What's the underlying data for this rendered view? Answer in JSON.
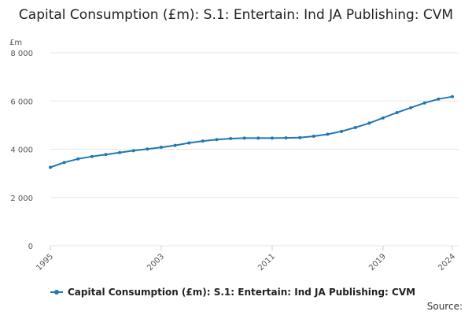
{
  "title": "Capital Consumption (£m): S.1: Entertain: Ind JA Publishing: CVM",
  "source_label": "Source:",
  "colors": {
    "series": "#1f77b4",
    "grid": "#e6e6e6",
    "axis": "#cccccc"
  },
  "chart_data": {
    "type": "line",
    "title": "Capital Consumption (£m): S.1: Entertain: Ind JA Publishing: CVM",
    "ylabel": "£m",
    "xlabel": "",
    "ylim": [
      0,
      8000
    ],
    "yticks": [
      0,
      2000,
      4000,
      6000,
      8000
    ],
    "ytick_labels": [
      "0",
      "2 000",
      "4 000",
      "6 000",
      "8 000"
    ],
    "xlim": [
      1995,
      2024
    ],
    "xticks": [
      1995,
      2003,
      2011,
      2019,
      2024
    ],
    "xtick_labels": [
      "1995",
      "2003",
      "2011",
      "2019",
      "2024"
    ],
    "legend": "bottom",
    "series": [
      {
        "name": "Capital Consumption (£m): S.1: Entertain: Ind JA Publishing: CVM",
        "x": [
          1995,
          1996,
          1997,
          1998,
          1999,
          2000,
          2001,
          2002,
          2003,
          2004,
          2005,
          2006,
          2007,
          2008,
          2009,
          2010,
          2011,
          2012,
          2013,
          2014,
          2015,
          2016,
          2017,
          2018,
          2019,
          2020,
          2021,
          2022,
          2023,
          2024
        ],
        "values": [
          3250,
          3450,
          3600,
          3700,
          3780,
          3860,
          3940,
          4010,
          4080,
          4160,
          4260,
          4340,
          4400,
          4440,
          4460,
          4460,
          4460,
          4470,
          4480,
          4540,
          4620,
          4740,
          4900,
          5080,
          5300,
          5520,
          5720,
          5920,
          6080,
          6180
        ]
      }
    ]
  }
}
